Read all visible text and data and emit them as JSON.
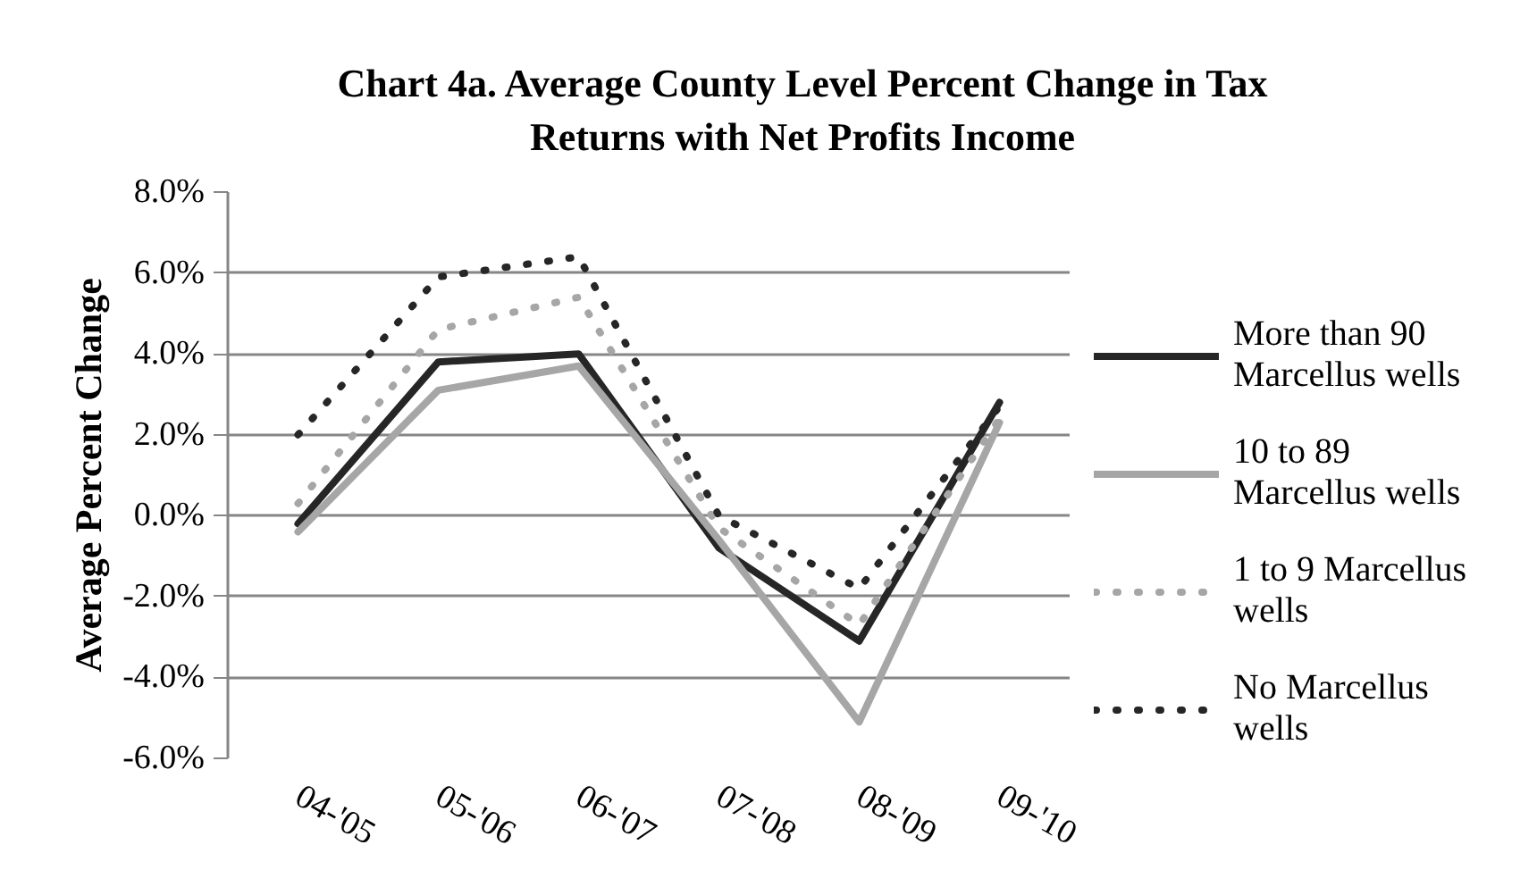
{
  "chart_data": {
    "type": "line",
    "title": "Chart 4a. Average County Level Percent Change in Tax Returns with Net Profits Income",
    "ylabel": "Average Percent Change",
    "categories": [
      "04-'05",
      "05-'06",
      "06-'07",
      "07-'08",
      "08-'09",
      "09-'10"
    ],
    "series": [
      {
        "name": "More than 90 Marcellus wells",
        "color": "#262626",
        "line_style": "solid",
        "values": [
          -0.2,
          3.8,
          4.0,
          -0.8,
          -3.1,
          2.8
        ]
      },
      {
        "name": "10 to 89 Marcellus wells",
        "color": "#a6a6a6",
        "line_style": "solid",
        "values": [
          -0.4,
          3.1,
          3.7,
          -0.6,
          -5.1,
          2.3
        ]
      },
      {
        "name": "1 to 9 Marcellus wells",
        "color": "#a6a6a6",
        "line_style": "dotted",
        "values": [
          0.3,
          4.6,
          5.4,
          -0.3,
          -2.7,
          2.4
        ]
      },
      {
        "name": "No Marcellus wells",
        "color": "#262626",
        "line_style": "dotted",
        "values": [
          2.0,
          5.9,
          6.4,
          0.0,
          -1.8,
          2.7
        ]
      }
    ],
    "ylim": [
      -6,
      8
    ],
    "yticks": [
      {
        "value": -6,
        "label": "-6.0%"
      },
      {
        "value": -4,
        "label": "-4.0%"
      },
      {
        "value": -2,
        "label": "-2.0%"
      },
      {
        "value": 0,
        "label": "0.0%"
      },
      {
        "value": 2,
        "label": "2.0%"
      },
      {
        "value": 4,
        "label": "4.0%"
      },
      {
        "value": 6,
        "label": "6.0%"
      },
      {
        "value": 8,
        "label": "8.0%"
      }
    ],
    "grid": "y",
    "legend": "right"
  }
}
